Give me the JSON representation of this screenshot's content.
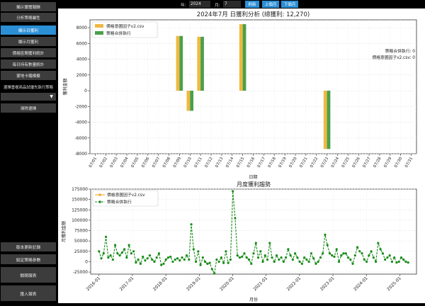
{
  "sidebar": {
    "buttons": [
      {
        "label": "顯示實體報酬",
        "active": false
      },
      {
        "label": "分析策略屬性",
        "active": false
      },
      {
        "label": "顯示日獲利",
        "active": true
      },
      {
        "label": "顯示月獲利",
        "active": false
      },
      {
        "label": "價格區間獲利統計",
        "active": false
      },
      {
        "label": "每日持有數量統計",
        "active": false
      },
      {
        "label": "蒙地卡羅模擬",
        "active": false
      }
    ],
    "select_label": "選擇重複商品試優先執行策略",
    "select_value": "",
    "clear_button": "清除選擇",
    "bottom_buttons": [
      "版本更新記錄",
      "設定策略參數",
      "關閉報表",
      "匯入報表"
    ]
  },
  "toolbar": {
    "year_label": "年:",
    "year_value": "2024",
    "month_label": "月:",
    "month_value": "7",
    "refresh": "刷新",
    "prev": "上個月",
    "next": "下個月"
  },
  "icons": {
    "dropdown": "chevron-down-icon"
  },
  "colors": {
    "series1": "#f0b840",
    "series2": "#4aa04a",
    "line2": "#1a8c1a",
    "line1": "#f5a623",
    "accent": "#2b8fd6"
  },
  "chart_data": [
    {
      "type": "bar",
      "title": "2024年7月 日獲利分析 (總獲利: 12,270)",
      "xlabel": "日期",
      "ylabel": "獲利金額",
      "ylim": [
        -8000,
        9000
      ],
      "yticks": [
        -8000,
        -6000,
        -4000,
        -2000,
        0,
        2000,
        4000,
        6000,
        8000
      ],
      "categories": [
        "07/01",
        "07/02",
        "07/03",
        "07/04",
        "07/05",
        "07/06",
        "07/07",
        "07/08",
        "07/09",
        "07/10",
        "07/11",
        "07/12",
        "07/13",
        "07/14",
        "07/15",
        "07/16",
        "07/17",
        "07/18",
        "07/19",
        "07/20",
        "07/21",
        "07/22",
        "07/23",
        "07/24",
        "07/25",
        "07/26",
        "07/27",
        "07/28",
        "07/29",
        "07/30",
        "07/31"
      ],
      "series": [
        {
          "name": "價格意圖因子v2.csv",
          "values": [
            0,
            0,
            0,
            0,
            0,
            0,
            0,
            0,
            6950,
            -2550,
            6850,
            0,
            0,
            0,
            8450,
            0,
            0,
            0,
            0,
            0,
            0,
            0,
            -7400,
            0,
            0,
            0,
            0,
            0,
            0,
            0,
            0
          ]
        },
        {
          "name": "策略合併執行",
          "values": [
            0,
            0,
            0,
            0,
            0,
            0,
            0,
            0,
            6950,
            -2550,
            6850,
            0,
            0,
            0,
            8450,
            0,
            0,
            0,
            0,
            0,
            0,
            0,
            -7400,
            0,
            0,
            0,
            0,
            0,
            0,
            0,
            0
          ]
        }
      ],
      "legend": "top-left",
      "annotations": [
        "策略合併執行: 0",
        "價格意圖因子v2.csv: 0"
      ]
    },
    {
      "type": "line",
      "title": "月度獲利趨勢",
      "xlabel": "月份",
      "ylabel": "月獲利金額",
      "ylim": [
        -30000,
        175000
      ],
      "yticks": [
        -25000,
        0,
        25000,
        50000,
        75000,
        100000,
        125000,
        150000,
        175000
      ],
      "xticks": [
        "2016-01",
        "2017-01",
        "2018-01",
        "2019-01",
        "2020-01",
        "2021-01",
        "2022-01",
        "2023-01",
        "2024-01",
        "2025-01"
      ],
      "x_start": "2016-01",
      "x_end": "2025-04",
      "series": [
        {
          "name": "價格意圖因子v2.csv"
        },
        {
          "name": "策略合併執行",
          "values": [
            25000,
            8000,
            20000,
            60000,
            10000,
            15000,
            5000,
            40000,
            20000,
            15000,
            22000,
            30000,
            10000,
            40000,
            20000,
            25000,
            -2000,
            5000,
            -5000,
            12000,
            3000,
            8000,
            15000,
            5000,
            0,
            10000,
            20000,
            -8000,
            -5000,
            5000,
            10000,
            12000,
            0,
            5000,
            8000,
            3000,
            10000,
            5000,
            15000,
            5000,
            90000,
            30000,
            0,
            25000,
            -8000,
            10000,
            0,
            -5000,
            -3000,
            -18000,
            -28000,
            5000,
            0,
            10000,
            -3000,
            25000,
            -3000,
            5000,
            170000,
            105000,
            15000,
            10000,
            12000,
            20000,
            10000,
            5000,
            -5000,
            20000,
            45000,
            10000,
            25000,
            0,
            15000,
            5000,
            45000,
            10000,
            0,
            15000,
            5000,
            10000,
            0,
            10000,
            30000,
            15000,
            5000,
            20000,
            10000,
            0,
            -5000,
            10000,
            5000,
            0,
            20000,
            8000,
            -5000,
            0,
            10000,
            20000,
            65000,
            40000,
            20000,
            15000,
            12000,
            30000,
            0,
            15000,
            20000,
            20000,
            10000,
            5000,
            -5000,
            15000,
            35000,
            25000,
            20000,
            5000,
            0,
            15000,
            25000,
            10000,
            0,
            45000,
            30000,
            20000,
            5000,
            10000,
            15000,
            0,
            10000,
            -2000,
            0,
            10000,
            5000,
            0,
            -2000
          ]
        }
      ],
      "legend": "top-left"
    }
  ]
}
